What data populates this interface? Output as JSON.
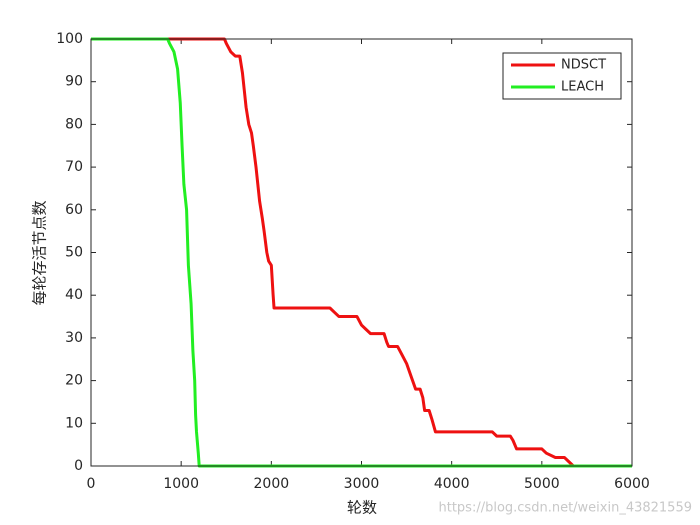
{
  "chart_data": {
    "type": "line",
    "xlabel": "轮数",
    "ylabel": "每轮存活节点数",
    "xlim": [
      0,
      6000
    ],
    "xticks": [
      0,
      1000,
      2000,
      3000,
      4000,
      5000,
      6000
    ],
    "ylim": [
      0,
      100
    ],
    "yticks": [
      0,
      10,
      20,
      30,
      40,
      50,
      60,
      70,
      80,
      90,
      100
    ],
    "legend": "top-right",
    "series": [
      {
        "name": "NDSCT",
        "color": "#ee1111",
        "x": [
          0,
          1480,
          1500,
          1550,
          1600,
          1650,
          1680,
          1700,
          1720,
          1750,
          1780,
          1800,
          1830,
          1850,
          1870,
          1900,
          1920,
          1950,
          1970,
          2000,
          2020,
          2030,
          2650,
          2700,
          2750,
          2950,
          3000,
          3050,
          3100,
          3250,
          3280,
          3300,
          3400,
          3450,
          3500,
          3550,
          3600,
          3650,
          3680,
          3700,
          3750,
          3780,
          3820,
          4450,
          4500,
          4650,
          4680,
          4720,
          5000,
          5050,
          5150,
          5250,
          5300,
          5350,
          6000
        ],
        "values": [
          100,
          100,
          99,
          97,
          96,
          96,
          92,
          88,
          84,
          80,
          78,
          75,
          70,
          66,
          62,
          58,
          55,
          50,
          48,
          47,
          40,
          37,
          37,
          36,
          35,
          35,
          33,
          32,
          31,
          31,
          29,
          28,
          28,
          26,
          24,
          21,
          18,
          18,
          16,
          13,
          13,
          11,
          8,
          8,
          7,
          7,
          6,
          4,
          4,
          3,
          2,
          2,
          1,
          0,
          0
        ]
      },
      {
        "name": "LEACH",
        "color": "#22ee22",
        "x": [
          0,
          850,
          870,
          920,
          960,
          990,
          1010,
          1030,
          1060,
          1080,
          1110,
          1130,
          1150,
          1160,
          1170,
          1190,
          1200,
          6000
        ],
        "values": [
          100,
          100,
          99,
          97,
          93,
          85,
          75,
          66,
          60,
          47,
          38,
          27,
          20,
          12,
          8,
          3,
          0,
          0
        ]
      }
    ]
  },
  "watermark": "https://blog.csdn.net/weixin_43821559"
}
